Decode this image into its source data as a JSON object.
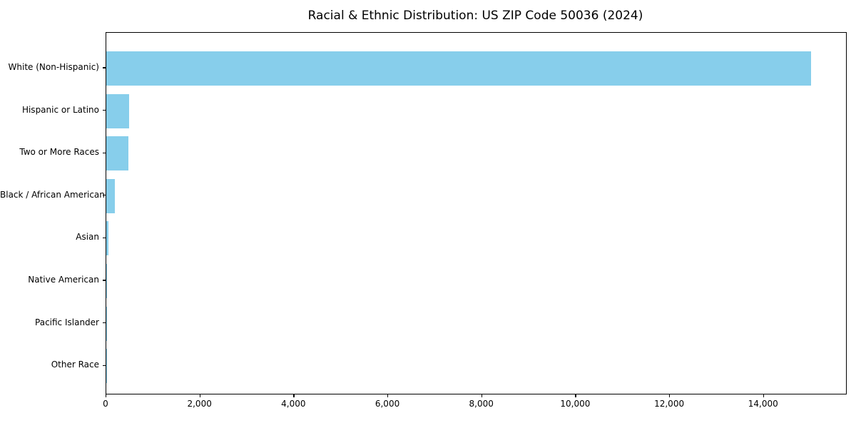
{
  "chart_data": {
    "type": "bar",
    "orientation": "horizontal",
    "title": "Racial & Ethnic Distribution: US ZIP Code 50036 (2024)",
    "categories": [
      "White (Non-Hispanic)",
      "Hispanic or Latino",
      "Two or More Races",
      "Black / African American",
      "Asian",
      "Native American",
      "Pacific Islander",
      "Other Race"
    ],
    "values": [
      15000,
      485,
      470,
      175,
      40,
      10,
      5,
      5
    ],
    "xlabel": "",
    "ylabel": "",
    "xlim": [
      0,
      15750
    ],
    "x_ticks": [
      0,
      2000,
      4000,
      6000,
      8000,
      10000,
      12000,
      14000
    ],
    "x_tick_labels": [
      "0",
      "2,000",
      "4,000",
      "6,000",
      "8,000",
      "10,000",
      "12,000",
      "14,000"
    ],
    "bar_color": "#87CEEB",
    "spine_color": "#000000",
    "text_color": "#000000",
    "background_color": "#FFFFFF",
    "grid": false,
    "legend": null
  }
}
